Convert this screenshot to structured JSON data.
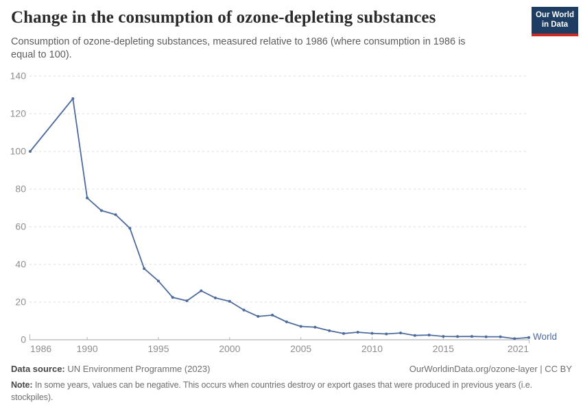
{
  "header": {
    "title": "Change in the consumption of ozone-depleting substances",
    "subtitle": "Consumption of ozone-depleting substances, measured relative to 1986 (where consumption in 1986 is equal to 100).",
    "logo": {
      "line1": "Our World",
      "line2": "in Data"
    }
  },
  "chart_data": {
    "type": "line",
    "title": "Change in the consumption of ozone-depleting substances",
    "xlabel": "",
    "ylabel": "",
    "xlim": [
      1986,
      2021
    ],
    "ylim": [
      0,
      140
    ],
    "xticks": [
      1986,
      1990,
      1995,
      2000,
      2005,
      2010,
      2015,
      2021
    ],
    "yticks": [
      0,
      20,
      40,
      60,
      80,
      100,
      120,
      140
    ],
    "grid": "horizontal-dashed",
    "legend_position": "end-of-line-label",
    "series": [
      {
        "name": "World",
        "color": "#4c6a9c",
        "points": [
          [
            1986,
            100
          ],
          [
            1989,
            128
          ],
          [
            1990,
            75.3
          ],
          [
            1991,
            68.6
          ],
          [
            1992,
            66.4
          ],
          [
            1993,
            59.2
          ],
          [
            1994,
            37.8
          ],
          [
            1995,
            31.2
          ],
          [
            1996,
            22.5
          ],
          [
            1997,
            20.7
          ],
          [
            1998,
            26.0
          ],
          [
            1999,
            22.2
          ],
          [
            2000,
            20.4
          ],
          [
            2001,
            15.8
          ],
          [
            2002,
            12.4
          ],
          [
            2003,
            13.1
          ],
          [
            2004,
            9.5
          ],
          [
            2005,
            7.1
          ],
          [
            2006,
            6.7
          ],
          [
            2007,
            4.8
          ],
          [
            2008,
            3.3
          ],
          [
            2009,
            4.0
          ],
          [
            2010,
            3.4
          ],
          [
            2011,
            3.1
          ],
          [
            2012,
            3.6
          ],
          [
            2013,
            2.3
          ],
          [
            2014,
            2.5
          ],
          [
            2015,
            1.8
          ],
          [
            2016,
            1.7
          ],
          [
            2017,
            1.8
          ],
          [
            2018,
            1.6
          ],
          [
            2019,
            1.6
          ],
          [
            2020,
            0.6
          ],
          [
            2021,
            1.2
          ]
        ]
      }
    ]
  },
  "footer": {
    "datasource_label": "Data source:",
    "datasource_value": " UN Environment Programme (2023)",
    "attribution": "OurWorldinData.org/ozone-layer | CC BY",
    "note_label": "Note:",
    "note_value": " In some years, values can be negative. This occurs when countries destroy or export gases that were produced in previous years (i.e. stockpiles)."
  },
  "colors": {
    "line_blue": "#4c6a9c",
    "logo_navy": "#1d3d63",
    "logo_red": "#cc2a25",
    "gridline": "#dddddd",
    "axis": "#a1a1a1",
    "axis_label": "#8e8e8e",
    "title_text": "#2b2b2b",
    "subtitle_text": "#5b5b5b"
  }
}
